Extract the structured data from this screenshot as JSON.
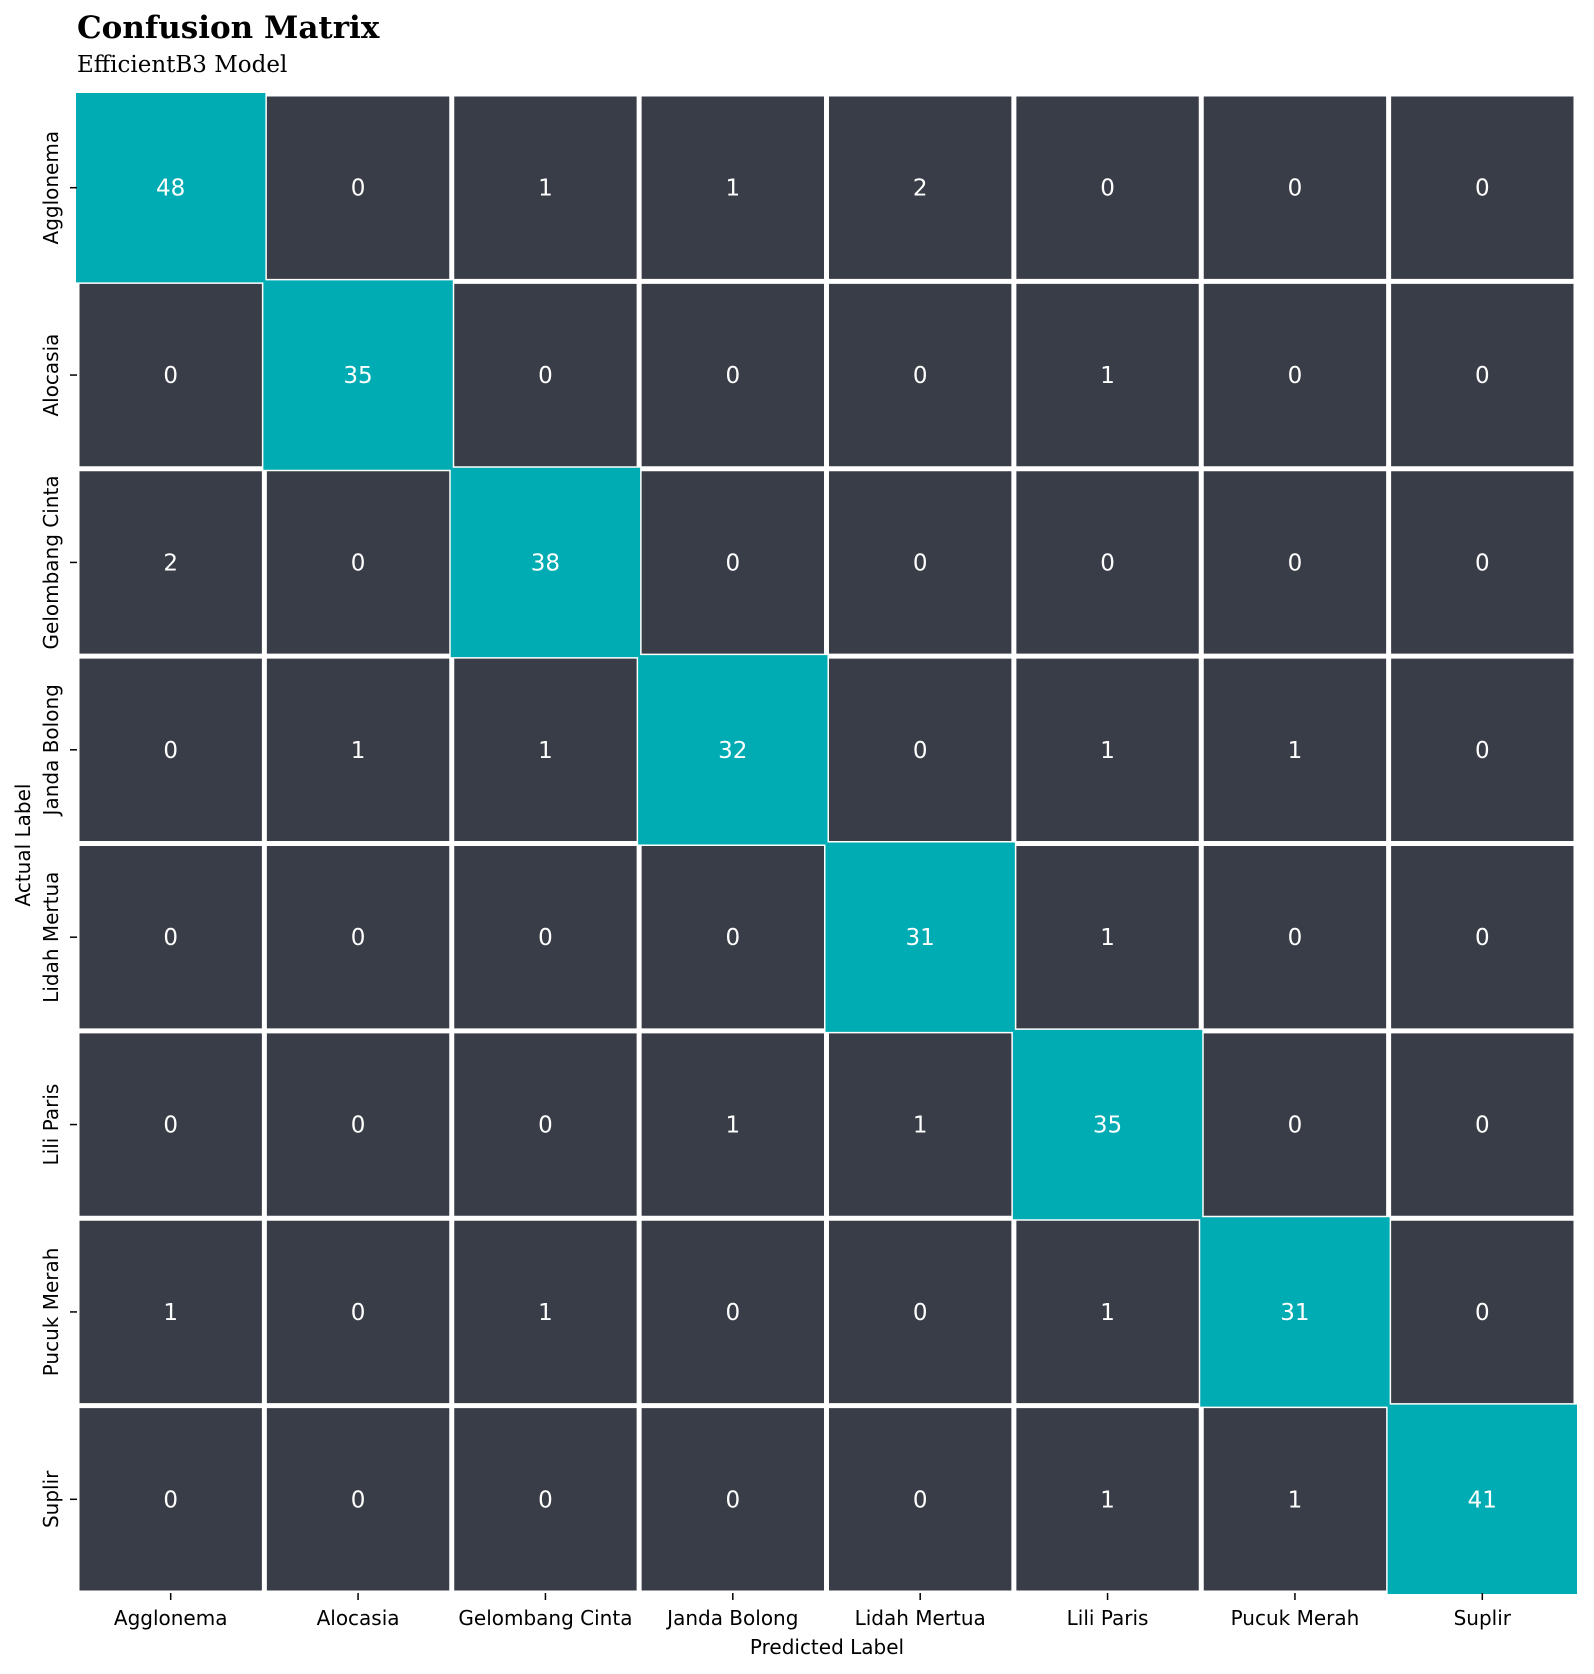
{
  "colors": {
    "background": "#ffffff",
    "diagonal": "#00acb3",
    "off_diagonal": "#393d47",
    "grid": "#ffffff",
    "text": "#ffffff"
  },
  "chart_data": {
    "type": "heatmap",
    "title": "Confusion Matrix",
    "subtitle": "EfficientB3 Model",
    "xlabel": "Predicted Label",
    "ylabel": "Actual Label",
    "x_categories": [
      "Agglonema",
      "Alocasia",
      "Gelombang Cinta",
      "Janda Bolong",
      "Lidah Mertua",
      "Lili Paris",
      "Pucuk Merah",
      "Suplir"
    ],
    "y_categories": [
      "Agglonema",
      "Alocasia",
      "Gelombang Cinta",
      "Janda Bolong",
      "Lidah Mertua",
      "Lili Paris",
      "Pucuk Merah",
      "Suplir"
    ],
    "matrix": [
      [
        48,
        0,
        1,
        1,
        2,
        0,
        0,
        0
      ],
      [
        0,
        35,
        0,
        0,
        0,
        1,
        0,
        0
      ],
      [
        2,
        0,
        38,
        0,
        0,
        0,
        0,
        0
      ],
      [
        0,
        1,
        1,
        32,
        0,
        1,
        1,
        0
      ],
      [
        0,
        0,
        0,
        0,
        31,
        1,
        0,
        0
      ],
      [
        0,
        0,
        0,
        1,
        1,
        35,
        0,
        0
      ],
      [
        1,
        0,
        1,
        0,
        0,
        1,
        31,
        0
      ],
      [
        0,
        0,
        0,
        0,
        0,
        1,
        1,
        41
      ]
    ],
    "colorbar": false,
    "legend": "none"
  }
}
